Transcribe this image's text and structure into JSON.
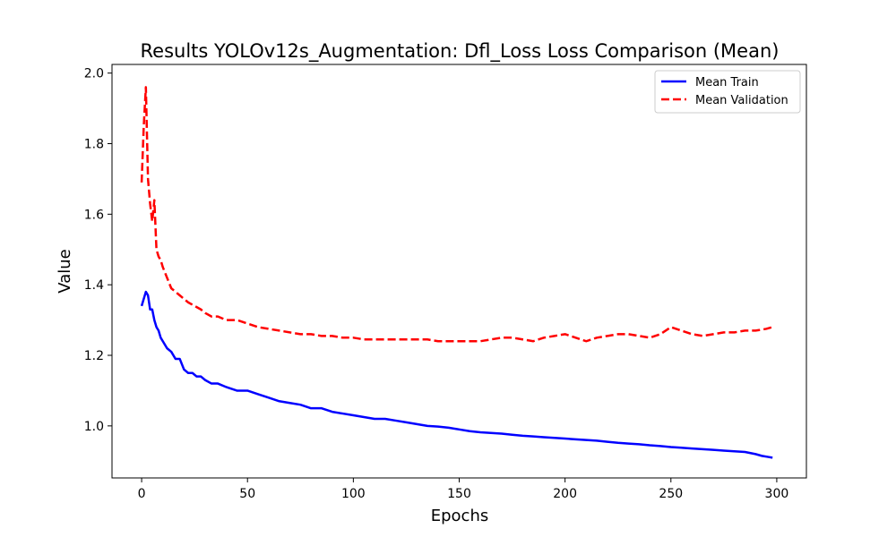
{
  "chart_data": {
    "type": "line",
    "title": "Results YOLOv12s_Augmentation: Dfl_Loss Loss Comparison (Mean)",
    "xlabel": "Epochs",
    "ylabel": "Value",
    "xlim": [
      -14,
      314
    ],
    "ylim": [
      0.8525,
      2.0245
    ],
    "xticks": [
      0,
      50,
      100,
      150,
      200,
      250,
      300
    ],
    "yticks": [
      1.0,
      1.2,
      1.4,
      1.6,
      1.8,
      2.0
    ],
    "grid": false,
    "legend_position": "top-right",
    "series": [
      {
        "name": "Mean Train",
        "color": "#0000ff",
        "style": "solid",
        "x": [
          0,
          1,
          2,
          3,
          4,
          5,
          6,
          7,
          8,
          9,
          10,
          12,
          14,
          16,
          18,
          20,
          22,
          24,
          26,
          28,
          30,
          33,
          36,
          40,
          45,
          50,
          55,
          60,
          65,
          70,
          75,
          80,
          85,
          90,
          95,
          100,
          105,
          110,
          115,
          120,
          125,
          130,
          135,
          140,
          145,
          150,
          155,
          160,
          165,
          170,
          175,
          180,
          185,
          190,
          195,
          200,
          205,
          210,
          215,
          220,
          225,
          230,
          235,
          240,
          245,
          250,
          255,
          260,
          265,
          270,
          275,
          280,
          285,
          290,
          293,
          296,
          298
        ],
        "y": [
          1.34,
          1.36,
          1.38,
          1.37,
          1.33,
          1.33,
          1.3,
          1.28,
          1.27,
          1.25,
          1.24,
          1.22,
          1.21,
          1.19,
          1.19,
          1.16,
          1.15,
          1.15,
          1.14,
          1.14,
          1.13,
          1.12,
          1.12,
          1.11,
          1.1,
          1.1,
          1.09,
          1.08,
          1.07,
          1.065,
          1.06,
          1.05,
          1.05,
          1.04,
          1.035,
          1.03,
          1.025,
          1.02,
          1.02,
          1.015,
          1.01,
          1.005,
          1.0,
          0.998,
          0.995,
          0.99,
          0.985,
          0.982,
          0.98,
          0.978,
          0.975,
          0.972,
          0.97,
          0.968,
          0.966,
          0.964,
          0.962,
          0.96,
          0.958,
          0.955,
          0.952,
          0.95,
          0.948,
          0.945,
          0.943,
          0.94,
          0.938,
          0.936,
          0.934,
          0.932,
          0.93,
          0.928,
          0.926,
          0.92,
          0.915,
          0.912,
          0.91
        ]
      },
      {
        "name": "Mean Validation",
        "color": "#ff0000",
        "style": "dashed",
        "x": [
          0,
          1,
          2,
          3,
          4,
          5,
          6,
          7,
          8,
          9,
          10,
          12,
          14,
          16,
          18,
          20,
          22,
          25,
          28,
          30,
          33,
          36,
          40,
          45,
          50,
          55,
          60,
          65,
          70,
          75,
          80,
          85,
          90,
          95,
          100,
          105,
          110,
          115,
          120,
          125,
          130,
          135,
          140,
          145,
          150,
          155,
          160,
          165,
          170,
          175,
          180,
          185,
          190,
          195,
          200,
          205,
          210,
          215,
          220,
          225,
          230,
          235,
          240,
          245,
          250,
          255,
          260,
          265,
          270,
          275,
          280,
          285,
          290,
          295,
          298
        ],
        "y": [
          1.69,
          1.85,
          1.96,
          1.7,
          1.63,
          1.58,
          1.64,
          1.5,
          1.48,
          1.47,
          1.45,
          1.42,
          1.39,
          1.38,
          1.37,
          1.36,
          1.35,
          1.34,
          1.33,
          1.32,
          1.31,
          1.31,
          1.3,
          1.3,
          1.29,
          1.28,
          1.275,
          1.27,
          1.265,
          1.26,
          1.26,
          1.255,
          1.255,
          1.25,
          1.25,
          1.245,
          1.245,
          1.245,
          1.245,
          1.245,
          1.245,
          1.245,
          1.24,
          1.24,
          1.24,
          1.24,
          1.24,
          1.245,
          1.25,
          1.25,
          1.245,
          1.24,
          1.25,
          1.255,
          1.26,
          1.25,
          1.24,
          1.25,
          1.255,
          1.26,
          1.26,
          1.255,
          1.25,
          1.26,
          1.28,
          1.27,
          1.26,
          1.255,
          1.26,
          1.265,
          1.265,
          1.27,
          1.27,
          1.275,
          1.28
        ]
      }
    ]
  }
}
